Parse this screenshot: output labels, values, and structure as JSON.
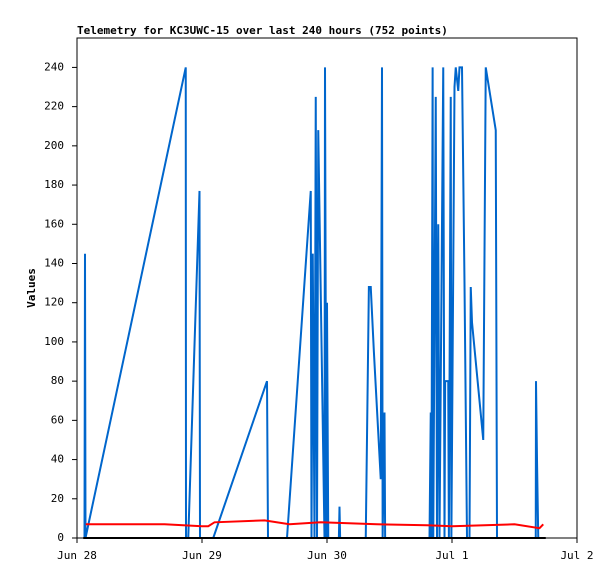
{
  "chart_data": {
    "type": "line",
    "title": "Telemetry for KC3UWC-15 over last 240 hours (752 points)",
    "y_label": "Values",
    "xlim": [
      0,
      4
    ],
    "xticks": [
      {
        "value": 0,
        "label": "Jun 28"
      },
      {
        "value": 1,
        "label": "Jun 29"
      },
      {
        "value": 2,
        "label": "Jun 30"
      },
      {
        "value": 3,
        "label": "Jul 1"
      },
      {
        "value": 4,
        "label": "Jul 2"
      }
    ],
    "ylim": [
      0,
      255
    ],
    "yticks": [
      0,
      20,
      40,
      60,
      80,
      100,
      120,
      140,
      160,
      180,
      200,
      220,
      240
    ],
    "series": [
      {
        "color": "#0066cc",
        "x": [
          0.06,
          0.064,
          0.068,
          0.87,
          0.872,
          0.89,
          0.98,
          0.984,
          0.99,
          1.09,
          1.52,
          1.528,
          1.68,
          1.87,
          1.876,
          1.886,
          1.9,
          1.91,
          1.92,
          1.93,
          1.98,
          1.984,
          1.995,
          2.0,
          2.01,
          2.095,
          2.1,
          2.105,
          2.31,
          2.335,
          2.35,
          2.375,
          2.43,
          2.44,
          2.445,
          2.46,
          2.465,
          2.82,
          2.83,
          2.835,
          2.845,
          2.85,
          2.87,
          2.88,
          2.89,
          2.9,
          2.93,
          2.94,
          2.945,
          2.97,
          2.975,
          2.99,
          2.995,
          3.02,
          3.03,
          3.05,
          3.06,
          3.07,
          3.08,
          3.1,
          3.12,
          3.14,
          3.15,
          3.16,
          3.25,
          3.27,
          3.35,
          3.36,
          3.38,
          3.39,
          3.4,
          3.67,
          3.672,
          3.68,
          3.69
        ],
        "values": [
          0,
          145,
          0,
          240,
          0,
          0,
          177,
          0,
          0,
          0,
          80,
          0,
          0,
          177,
          0,
          145,
          0,
          225,
          0,
          208,
          0,
          240,
          0,
          120,
          0,
          0,
          16,
          0,
          0,
          128,
          128,
          95,
          30,
          240,
          0,
          64,
          0,
          0,
          64,
          0,
          240,
          0,
          225,
          0,
          160,
          0,
          240,
          0,
          80,
          80,
          0,
          225,
          0,
          230,
          240,
          228,
          240,
          240,
          240,
          130,
          0,
          0,
          128,
          110,
          50,
          240,
          208,
          0,
          0,
          0,
          0,
          0,
          80,
          40,
          0
        ]
      },
      {
        "color": "#ff0000",
        "x": [
          0.07,
          0.5,
          0.7,
          1.0,
          1.05,
          1.1,
          1.5,
          1.7,
          1.95,
          2.4,
          2.8,
          3.0,
          3.5,
          3.7,
          3.73
        ],
        "values": [
          7,
          7,
          7,
          6,
          6,
          8,
          9,
          7,
          8,
          7,
          6.5,
          6,
          7,
          5,
          7
        ]
      },
      {
        "color": "#000000",
        "x": [
          0.05,
          3.75
        ],
        "values": [
          0,
          0
        ]
      }
    ]
  }
}
